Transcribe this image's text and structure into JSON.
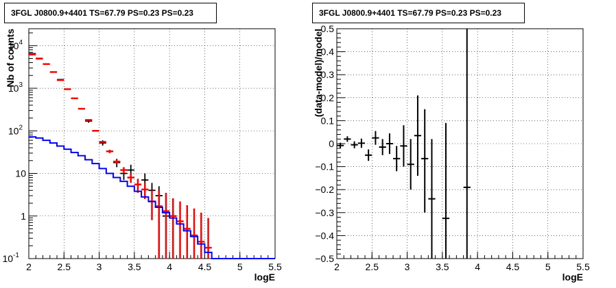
{
  "chart_data": [
    {
      "type": "line",
      "title": "3FGL J0800.9+4401 TS=67.79 PS=0.23 PS=0.23",
      "xlabel": "logE",
      "ylabel": "Nb of counts",
      "xlim": [
        2,
        5.5
      ],
      "ylim": [
        0.1,
        25000
      ],
      "yscale": "log",
      "grid": true,
      "x_ticks": [
        "2",
        "2.5",
        "3",
        "3.5",
        "4",
        "4.5",
        "5",
        "5.5"
      ],
      "y_ticks": [
        {
          "label": "10",
          "sup": "-1",
          "value": 0.1
        },
        {
          "label": "1",
          "sup": "",
          "value": 1
        },
        {
          "label": "10",
          "sup": "",
          "value": 10
        },
        {
          "label": "10",
          "sup": "2",
          "value": 100
        },
        {
          "label": "10",
          "sup": "3",
          "value": 1000
        },
        {
          "label": "10",
          "sup": "4",
          "value": 10000
        }
      ],
      "series": [
        {
          "kind": "data",
          "color": "#000000",
          "points": [
            {
              "x": 2.05,
              "y": 6500,
              "lo": 6400,
              "hi": 6600
            },
            {
              "x": 2.15,
              "y": 4900,
              "lo": 4800,
              "hi": 5000
            },
            {
              "x": 2.45,
              "y": 1600,
              "lo": 1550,
              "hi": 1650
            },
            {
              "x": 2.85,
              "y": 170,
              "lo": 155,
              "hi": 185
            },
            {
              "x": 3.05,
              "y": 52,
              "lo": 45,
              "hi": 60
            },
            {
              "x": 3.25,
              "y": 18,
              "lo": 14,
              "hi": 22
            },
            {
              "x": 3.35,
              "y": 10,
              "lo": 7,
              "hi": 14
            },
            {
              "x": 3.45,
              "y": 12,
              "lo": 8,
              "hi": 16
            },
            {
              "x": 3.65,
              "y": 7,
              "lo": 4.5,
              "hi": 10
            },
            {
              "x": 3.75,
              "y": 4,
              "lo": 2,
              "hi": 6
            },
            {
              "x": 3.85,
              "y": 3,
              "lo": 1.5,
              "hi": 5
            },
            {
              "x": 3.95,
              "y": 1,
              "lo": 0.3,
              "hi": 2
            },
            {
              "x": 4.05,
              "y": 1,
              "lo": 0.3,
              "hi": 2
            }
          ]
        },
        {
          "kind": "model",
          "color": "#ff0000",
          "points": [
            {
              "x": 2.05,
              "y": 6200,
              "lo": 6100,
              "hi": 6300
            },
            {
              "x": 2.15,
              "y": 5000,
              "lo": 4900,
              "hi": 5100
            },
            {
              "x": 2.25,
              "y": 3700,
              "lo": 3650,
              "hi": 3750
            },
            {
              "x": 2.35,
              "y": 2400,
              "lo": 2350,
              "hi": 2450
            },
            {
              "x": 2.45,
              "y": 1550,
              "lo": 1520,
              "hi": 1580
            },
            {
              "x": 2.55,
              "y": 950,
              "lo": 930,
              "hi": 970
            },
            {
              "x": 2.65,
              "y": 580,
              "lo": 570,
              "hi": 590
            },
            {
              "x": 2.75,
              "y": 330,
              "lo": 320,
              "hi": 340
            },
            {
              "x": 2.85,
              "y": 180,
              "lo": 175,
              "hi": 185
            },
            {
              "x": 2.95,
              "y": 100,
              "lo": 97,
              "hi": 103
            },
            {
              "x": 3.05,
              "y": 55,
              "lo": 53,
              "hi": 57
            },
            {
              "x": 3.15,
              "y": 33,
              "lo": 30,
              "hi": 36
            },
            {
              "x": 3.25,
              "y": 19,
              "lo": 17,
              "hi": 21
            },
            {
              "x": 3.35,
              "y": 12,
              "lo": 10,
              "hi": 14
            },
            {
              "x": 3.45,
              "y": 8,
              "lo": 6,
              "hi": 10
            },
            {
              "x": 3.55,
              "y": 5.5,
              "lo": 3.5,
              "hi": 7.5
            },
            {
              "x": 3.65,
              "y": 4.2,
              "lo": 2.5,
              "hi": 6
            },
            {
              "x": 3.75,
              "y": 2.2,
              "lo": 0.8,
              "hi": 4
            },
            {
              "x": 3.85,
              "y": 1.7,
              "lo": 0.1,
              "hi": 4
            },
            {
              "x": 3.95,
              "y": 1.3,
              "lo": 0.1,
              "hi": 3.5
            },
            {
              "x": 4.05,
              "y": 1.0,
              "lo": 0.1,
              "hi": 2.6
            },
            {
              "x": 4.15,
              "y": 0.75,
              "lo": 0.1,
              "hi": 2.2
            },
            {
              "x": 4.25,
              "y": 0.5,
              "lo": 0.1,
              "hi": 1.8
            },
            {
              "x": 4.35,
              "y": 0.35,
              "lo": 0.1,
              "hi": 1.5
            },
            {
              "x": 4.45,
              "y": 0.25,
              "lo": 0.1,
              "hi": 1.2
            },
            {
              "x": 4.55,
              "y": 0.18,
              "lo": 0.1,
              "hi": 0.9
            }
          ]
        },
        {
          "kind": "step",
          "color": "#0000ff",
          "bin_width": 0.1,
          "points": [
            {
              "x": 2.05,
              "y": 72
            },
            {
              "x": 2.15,
              "y": 68
            },
            {
              "x": 2.25,
              "y": 60
            },
            {
              "x": 2.35,
              "y": 52
            },
            {
              "x": 2.45,
              "y": 44
            },
            {
              "x": 2.55,
              "y": 37
            },
            {
              "x": 2.65,
              "y": 31
            },
            {
              "x": 2.75,
              "y": 26
            },
            {
              "x": 2.85,
              "y": 21
            },
            {
              "x": 2.95,
              "y": 17
            },
            {
              "x": 3.05,
              "y": 13
            },
            {
              "x": 3.15,
              "y": 10
            },
            {
              "x": 3.25,
              "y": 8
            },
            {
              "x": 3.35,
              "y": 6.5
            },
            {
              "x": 3.45,
              "y": 5
            },
            {
              "x": 3.55,
              "y": 3.8
            },
            {
              "x": 3.65,
              "y": 2.8
            },
            {
              "x": 3.75,
              "y": 2.2
            },
            {
              "x": 3.85,
              "y": 1.6
            },
            {
              "x": 3.95,
              "y": 1.2
            },
            {
              "x": 4.05,
              "y": 0.9
            },
            {
              "x": 4.15,
              "y": 0.65
            },
            {
              "x": 4.25,
              "y": 0.45
            },
            {
              "x": 4.35,
              "y": 0.33
            },
            {
              "x": 4.45,
              "y": 0.22
            },
            {
              "x": 4.55,
              "y": 0.14
            },
            {
              "x": 4.65,
              "y": 0.1
            },
            {
              "x": 4.75,
              "y": 0.1
            },
            {
              "x": 4.85,
              "y": 0.1
            },
            {
              "x": 4.95,
              "y": 0.1
            },
            {
              "x": 5.05,
              "y": 0.1
            },
            {
              "x": 5.15,
              "y": 0.1
            },
            {
              "x": 5.25,
              "y": 0.1
            },
            {
              "x": 5.35,
              "y": 0.1
            },
            {
              "x": 5.45,
              "y": 0.1
            }
          ]
        }
      ]
    },
    {
      "type": "scatter",
      "title": "3FGL J0800.9+4401 TS=67.79 PS=0.23 PS=0.23",
      "xlabel": "logE",
      "ylabel": "(data-model)/model",
      "xlim": [
        2,
        5.5
      ],
      "ylim": [
        -0.5,
        0.5
      ],
      "grid": true,
      "x_ticks": [
        "2",
        "2.5",
        "3",
        "3.5",
        "4",
        "4.5",
        "5",
        "5.5"
      ],
      "y_ticks": [
        "−0.5",
        "−0.4",
        "−0.3",
        "−0.2",
        "−0.1",
        "0",
        "0.1",
        "0.2",
        "0.3",
        "0.4",
        "0.5"
      ],
      "series": [
        {
          "color": "#000000",
          "points": [
            {
              "x": 2.05,
              "y": -0.008,
              "lo": -0.02,
              "hi": 0.004
            },
            {
              "x": 2.15,
              "y": 0.02,
              "lo": 0.008,
              "hi": 0.032
            },
            {
              "x": 2.25,
              "y": -0.005,
              "lo": -0.02,
              "hi": 0.01
            },
            {
              "x": 2.35,
              "y": 0.002,
              "lo": -0.018,
              "hi": 0.022
            },
            {
              "x": 2.45,
              "y": -0.05,
              "lo": -0.075,
              "hi": -0.025
            },
            {
              "x": 2.55,
              "y": 0.025,
              "lo": -0.005,
              "hi": 0.055
            },
            {
              "x": 2.65,
              "y": -0.015,
              "lo": -0.05,
              "hi": 0.02
            },
            {
              "x": 2.75,
              "y": 0.0,
              "lo": -0.045,
              "hi": 0.045
            },
            {
              "x": 2.85,
              "y": -0.065,
              "lo": -0.12,
              "hi": -0.01
            },
            {
              "x": 2.95,
              "y": -0.01,
              "lo": -0.1,
              "hi": 0.08
            },
            {
              "x": 3.05,
              "y": -0.09,
              "lo": -0.2,
              "hi": 0.02
            },
            {
              "x": 3.15,
              "y": 0.035,
              "lo": -0.14,
              "hi": 0.21
            },
            {
              "x": 3.25,
              "y": -0.065,
              "lo": -0.3,
              "hi": 0.15
            },
            {
              "x": 3.35,
              "y": -0.24,
              "lo": -0.5,
              "hi": 0.02
            },
            {
              "x": 3.55,
              "y": -0.325,
              "lo": -0.5,
              "hi": 0.09
            },
            {
              "x": 3.85,
              "y": -0.19,
              "lo": -0.5,
              "hi": 0.5
            }
          ]
        }
      ]
    }
  ]
}
